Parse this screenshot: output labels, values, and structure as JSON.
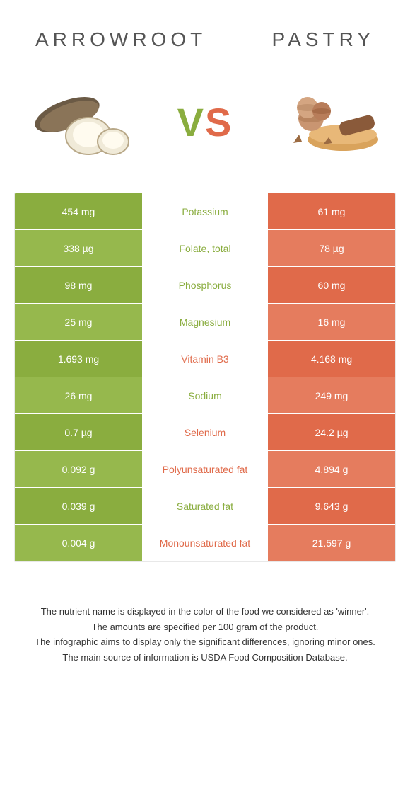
{
  "colors": {
    "left": "#8aad3f",
    "right": "#e06a4a",
    "left_alt": "#96b84d",
    "right_alt": "#e57c5e"
  },
  "header": {
    "left_title": "Arrowroot",
    "right_title": "Pastry"
  },
  "vs": {
    "v": "V",
    "s": "S"
  },
  "rows": [
    {
      "left": "454 mg",
      "label": "Potassium",
      "right": "61 mg",
      "winner": "left"
    },
    {
      "left": "338 µg",
      "label": "Folate, total",
      "right": "78 µg",
      "winner": "left"
    },
    {
      "left": "98 mg",
      "label": "Phosphorus",
      "right": "60 mg",
      "winner": "left"
    },
    {
      "left": "25 mg",
      "label": "Magnesium",
      "right": "16 mg",
      "winner": "left"
    },
    {
      "left": "1.693 mg",
      "label": "Vitamin B3",
      "right": "4.168 mg",
      "winner": "right"
    },
    {
      "left": "26 mg",
      "label": "Sodium",
      "right": "249 mg",
      "winner": "left"
    },
    {
      "left": "0.7 µg",
      "label": "Selenium",
      "right": "24.2 µg",
      "winner": "right"
    },
    {
      "left": "0.092 g",
      "label": "Polyunsaturated fat",
      "right": "4.894 g",
      "winner": "right"
    },
    {
      "left": "0.039 g",
      "label": "Saturated fat",
      "right": "9.643 g",
      "winner": "left"
    },
    {
      "left": "0.004 g",
      "label": "Monounsaturated fat",
      "right": "21.597 g",
      "winner": "right"
    }
  ],
  "footnotes": [
    "The nutrient name is displayed in the color of the food we considered as 'winner'.",
    "The amounts are specified per 100 gram of the product.",
    "The infographic aims to display only the significant differences, ignoring minor ones.",
    "The main source of information is USDA Food Composition Database."
  ]
}
